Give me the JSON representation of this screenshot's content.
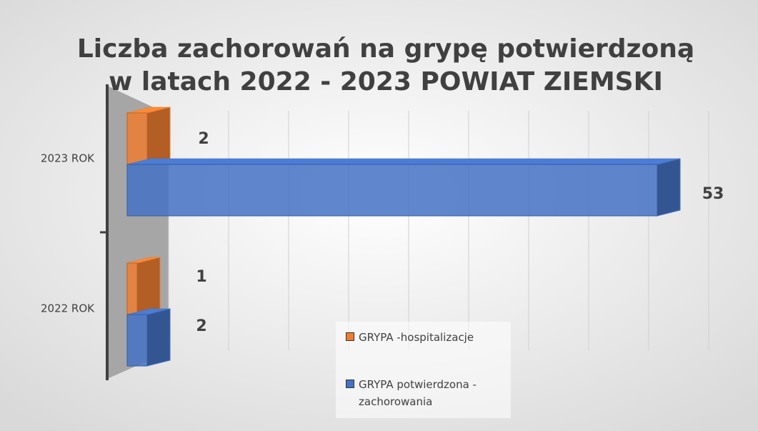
{
  "chart_data": {
    "type": "bar3d_horizontal",
    "title": "Liczba zachorowań na grypę potwierdzoną",
    "subtitle": "w latach 2022 - 2023 POWIAT ZIEMSKI",
    "categories": [
      "2023 ROK",
      "2022 ROK"
    ],
    "series": [
      {
        "name": "GRYPA -hospitalizacje",
        "color": "#ed7d31",
        "values": [
          2,
          1
        ]
      },
      {
        "name": "GRYPA potwierdzona - zachorowania",
        "color": "#4472c4",
        "values": [
          53,
          2
        ]
      }
    ],
    "xlim": [
      0,
      54
    ],
    "xticks": [
      0,
      6,
      12,
      18,
      24,
      30,
      36,
      42,
      48,
      54
    ],
    "grid": true,
    "legend": "bottom"
  }
}
